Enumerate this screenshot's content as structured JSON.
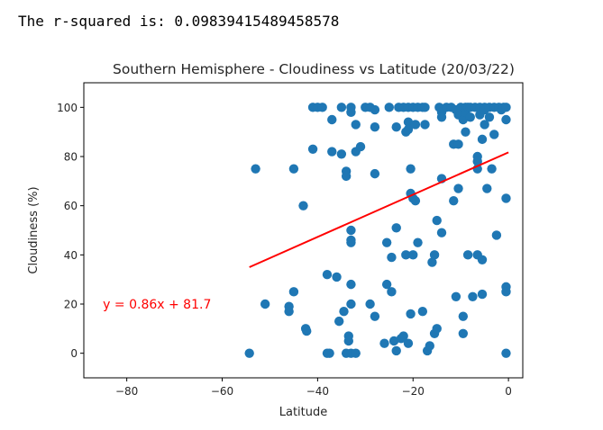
{
  "output": {
    "rsquared_text": "The r-squared is: 0.09839415489458578"
  },
  "chart_data": {
    "type": "scatter",
    "title": "Southern Hemisphere - Cloudiness vs Latitude (20/03/22)",
    "xlabel": "Latitude",
    "ylabel": "Cloudiness (%)",
    "xlim": [
      -89,
      3
    ],
    "ylim": [
      -10,
      110
    ],
    "xticks": [
      -80,
      -60,
      -40,
      -20,
      0
    ],
    "xtick_labels": [
      "−80",
      "−60",
      "−40",
      "−20",
      "0"
    ],
    "yticks": [
      0,
      20,
      40,
      60,
      80,
      100
    ],
    "yticks_labels": [
      "0",
      "20",
      "40",
      "60",
      "80",
      "100"
    ],
    "grid": false,
    "point_color": "#1f77b4",
    "line_color": "#ff0000",
    "regression": {
      "slope": 0.86,
      "intercept": 81.7,
      "x_range": [
        -54.3,
        0
      ],
      "equation": "y = 0.86x + 81.7",
      "equation_pos": [
        -85,
        20
      ]
    },
    "points": [
      [
        -54.3,
        0
      ],
      [
        -53,
        75
      ],
      [
        -51,
        20
      ],
      [
        -46,
        19
      ],
      [
        -46,
        17
      ],
      [
        -45,
        75
      ],
      [
        -45,
        25
      ],
      [
        -43,
        60
      ],
      [
        -42.5,
        10
      ],
      [
        -42.3,
        9
      ],
      [
        -41,
        83
      ],
      [
        -41,
        100
      ],
      [
        -40,
        100
      ],
      [
        -39,
        100
      ],
      [
        -38,
        32
      ],
      [
        -38,
        0
      ],
      [
        -37.5,
        0
      ],
      [
        -37,
        82
      ],
      [
        -37,
        95
      ],
      [
        -36,
        31
      ],
      [
        -35.5,
        13
      ],
      [
        -35,
        81
      ],
      [
        -35,
        100
      ],
      [
        -34.5,
        17
      ],
      [
        -34,
        74
      ],
      [
        -34,
        72
      ],
      [
        -34,
        0
      ],
      [
        -33.5,
        7
      ],
      [
        -33.5,
        5
      ],
      [
        -33,
        100
      ],
      [
        -33,
        98
      ],
      [
        -33,
        50
      ],
      [
        -33,
        46
      ],
      [
        -33,
        45
      ],
      [
        -33,
        28
      ],
      [
        -33,
        20
      ],
      [
        -33,
        0
      ],
      [
        -32,
        93
      ],
      [
        -32,
        82
      ],
      [
        -32,
        0
      ],
      [
        -31,
        84
      ],
      [
        -30,
        100
      ],
      [
        -29,
        100
      ],
      [
        -29,
        20
      ],
      [
        -28,
        99
      ],
      [
        -28,
        92
      ],
      [
        -28,
        73
      ],
      [
        -28,
        15
      ],
      [
        -26,
        4
      ],
      [
        -25.5,
        45
      ],
      [
        -25.5,
        28
      ],
      [
        -25,
        100
      ],
      [
        -24.5,
        25
      ],
      [
        -24.5,
        39
      ],
      [
        -24,
        5
      ],
      [
        -23.5,
        92
      ],
      [
        -23.5,
        51
      ],
      [
        -23.5,
        1
      ],
      [
        -23,
        100
      ],
      [
        -22.5,
        6
      ],
      [
        -22,
        100
      ],
      [
        -22,
        7
      ],
      [
        -21.5,
        90
      ],
      [
        -21.5,
        40
      ],
      [
        -21,
        100
      ],
      [
        -21,
        94
      ],
      [
        -21,
        91
      ],
      [
        -21,
        4
      ],
      [
        -20.5,
        75
      ],
      [
        -20.5,
        65
      ],
      [
        -20.5,
        16
      ],
      [
        -20,
        100
      ],
      [
        -20,
        63
      ],
      [
        -20,
        40
      ],
      [
        -19.5,
        93
      ],
      [
        -19.5,
        62
      ],
      [
        -19,
        100
      ],
      [
        -19,
        45
      ],
      [
        -18,
        100
      ],
      [
        -18,
        17
      ],
      [
        -17.5,
        93
      ],
      [
        -17.5,
        100
      ],
      [
        -17,
        1
      ],
      [
        -16.5,
        3
      ],
      [
        -16,
        37
      ],
      [
        -15.5,
        8
      ],
      [
        -15.5,
        40
      ],
      [
        -15,
        54
      ],
      [
        -15,
        10
      ],
      [
        -14.5,
        100
      ],
      [
        -14,
        98
      ],
      [
        -14,
        71
      ],
      [
        -14,
        96
      ],
      [
        -14,
        49
      ],
      [
        -13,
        100
      ],
      [
        -12,
        100
      ],
      [
        -11.5,
        85
      ],
      [
        -11.5,
        62
      ],
      [
        -11,
        23
      ],
      [
        -11,
        99
      ],
      [
        -10.5,
        97
      ],
      [
        -10.5,
        85
      ],
      [
        -10.5,
        67
      ],
      [
        -10,
        100
      ],
      [
        -10,
        97
      ],
      [
        -9.5,
        95
      ],
      [
        -9.5,
        15
      ],
      [
        -9.5,
        8
      ],
      [
        -9,
        100
      ],
      [
        -9,
        90
      ],
      [
        -9,
        98
      ],
      [
        -8.5,
        100
      ],
      [
        -8.5,
        40
      ],
      [
        -8,
        100
      ],
      [
        -8,
        96
      ],
      [
        -7.5,
        23
      ],
      [
        -7,
        100
      ],
      [
        -6.5,
        80
      ],
      [
        -6.5,
        78
      ],
      [
        -6.5,
        75
      ],
      [
        -6.5,
        40
      ],
      [
        -6,
        100
      ],
      [
        -6,
        97
      ],
      [
        -5.5,
        38
      ],
      [
        -5.5,
        24
      ],
      [
        -5.5,
        87
      ],
      [
        -5,
        100
      ],
      [
        -5,
        99
      ],
      [
        -5,
        93
      ],
      [
        -4.5,
        67
      ],
      [
        -4,
        100
      ],
      [
        -4,
        96
      ],
      [
        -3.5,
        75
      ],
      [
        -3,
        100
      ],
      [
        -3,
        89
      ],
      [
        -2.5,
        48
      ],
      [
        -2,
        100
      ],
      [
        -1.5,
        99
      ],
      [
        -1,
        100
      ],
      [
        -0.5,
        100
      ],
      [
        -0.5,
        95
      ],
      [
        -0.5,
        63
      ],
      [
        -0.5,
        27
      ],
      [
        -0.5,
        25
      ],
      [
        -0.5,
        0
      ]
    ]
  }
}
